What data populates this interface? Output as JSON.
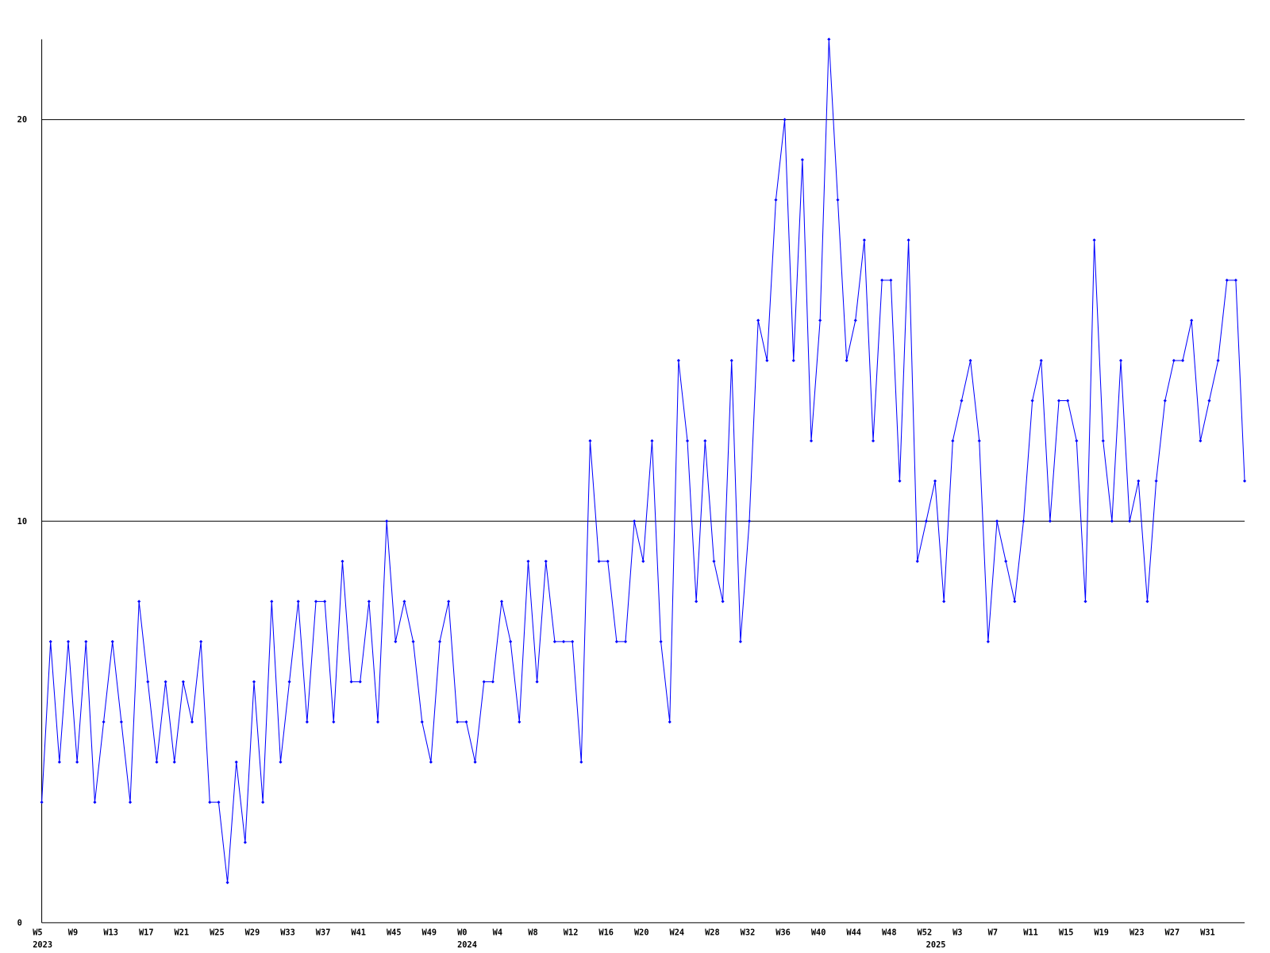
{
  "chart_data": {
    "type": "line",
    "x_labels": [
      "W5",
      null,
      null,
      null,
      "W9",
      null,
      null,
      null,
      "W13",
      null,
      null,
      null,
      "W17",
      null,
      null,
      null,
      "W21",
      null,
      null,
      null,
      "W25",
      null,
      null,
      null,
      "W29",
      null,
      null,
      null,
      "W33",
      null,
      null,
      null,
      "W37",
      null,
      null,
      null,
      "W41",
      null,
      null,
      null,
      "W45",
      null,
      null,
      null,
      "W49",
      null,
      null,
      null,
      "W0",
      null,
      null,
      null,
      "W4",
      null,
      null,
      null,
      "W8",
      null,
      null,
      null,
      "W12",
      null,
      null,
      null,
      "W16",
      null,
      null,
      null,
      "W20",
      null,
      null,
      null,
      "W24",
      null,
      null,
      null,
      "W28",
      null,
      null,
      null,
      "W32",
      null,
      null,
      null,
      "W36",
      null,
      null,
      null,
      "W40",
      null,
      null,
      null,
      "W44",
      null,
      null,
      null,
      "W48",
      null,
      null,
      null,
      "W52",
      null,
      null,
      null,
      "W3",
      null,
      null,
      null,
      "W7",
      null,
      null,
      null,
      "W11",
      null,
      null,
      null,
      "W15",
      null,
      null,
      null,
      "W19",
      null,
      null,
      null,
      "W23",
      null,
      null,
      null,
      "W27",
      null,
      null,
      null,
      "W31",
      null,
      null,
      null,
      null
    ],
    "year_labels": [
      "2023",
      null,
      null,
      null,
      null,
      null,
      null,
      null,
      null,
      null,
      null,
      null,
      null,
      null,
      null,
      null,
      null,
      null,
      null,
      null,
      null,
      null,
      null,
      null,
      null,
      null,
      null,
      null,
      null,
      null,
      null,
      null,
      null,
      null,
      null,
      null,
      null,
      null,
      null,
      null,
      null,
      null,
      null,
      null,
      null,
      null,
      null,
      null,
      "2024",
      null,
      null,
      null,
      null,
      null,
      null,
      null,
      null,
      null,
      null,
      null,
      null,
      null,
      null,
      null,
      null,
      null,
      null,
      null,
      null,
      null,
      null,
      null,
      null,
      null,
      null,
      null,
      null,
      null,
      null,
      null,
      null,
      null,
      null,
      null,
      null,
      null,
      null,
      null,
      null,
      null,
      null,
      null,
      null,
      null,
      null,
      null,
      null,
      null,
      null,
      null,
      null,
      "2025",
      null,
      null,
      null,
      null,
      null,
      null,
      null,
      null,
      null,
      null,
      null,
      null,
      null,
      null,
      null,
      null,
      null,
      null,
      null,
      null,
      null,
      null,
      null,
      null,
      null,
      null,
      null,
      null,
      null,
      null,
      null,
      null,
      null,
      null,
      null
    ],
    "series": [
      {
        "color": "#0000ff",
        "values": [
          3,
          7,
          4,
          7,
          4,
          7,
          3,
          5,
          7,
          5,
          3,
          8,
          6,
          4,
          6,
          4,
          6,
          5,
          7,
          3,
          3,
          1,
          4,
          2,
          6,
          3,
          8,
          4,
          6,
          8,
          5,
          8,
          8,
          5,
          9,
          6,
          6,
          8,
          5,
          10,
          7,
          8,
          7,
          5,
          4,
          7,
          8,
          5,
          5,
          4,
          6,
          6,
          8,
          7,
          5,
          9,
          6,
          9,
          7,
          7,
          7,
          4,
          12,
          9,
          9,
          7,
          7,
          10,
          9,
          12,
          7,
          5,
          14,
          12,
          8,
          12,
          9,
          8,
          14,
          7,
          10,
          15,
          14,
          18,
          20,
          14,
          19,
          12,
          15,
          22,
          18,
          14,
          15,
          17,
          12,
          16,
          16,
          11,
          17,
          9,
          10,
          11,
          8,
          12,
          13,
          14,
          12,
          7,
          10,
          9,
          8,
          10,
          13,
          14,
          10,
          13,
          13,
          12,
          8,
          17,
          12,
          10,
          14,
          10,
          11,
          8,
          11,
          13,
          14,
          14,
          15,
          12,
          13,
          14,
          16,
          16,
          11
        ]
      }
    ],
    "ylim": [
      0,
      22
    ],
    "yticks": [
      0,
      10,
      20
    ],
    "grid": true
  }
}
